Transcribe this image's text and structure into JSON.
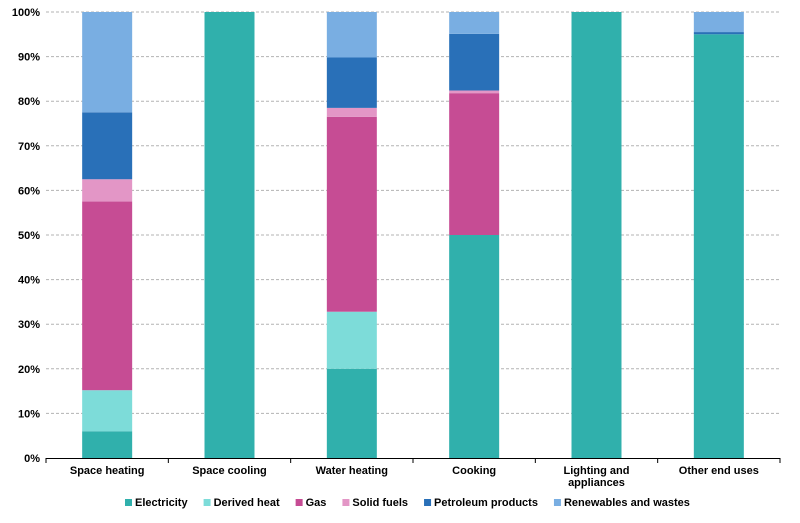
{
  "chart_data": {
    "type": "bar",
    "stacked": true,
    "title": "",
    "xlabel": "",
    "ylabel": "",
    "ylim": [
      0,
      100
    ],
    "y_ticks": [
      "0%",
      "10%",
      "20%",
      "30%",
      "40%",
      "50%",
      "60%",
      "70%",
      "80%",
      "90%",
      "100%"
    ],
    "categories": [
      [
        "Space heating"
      ],
      [
        "Space cooling"
      ],
      [
        "Water heating"
      ],
      [
        "Cooking"
      ],
      [
        "Lighting and",
        "appliances"
      ],
      [
        "Other end uses"
      ]
    ],
    "series": [
      {
        "name": "Electricity",
        "color": "#30B0AC",
        "values": [
          6,
          100,
          20,
          50,
          100,
          95
        ]
      },
      {
        "name": "Derived heat",
        "color": "#7DDCD9",
        "values": [
          9.2,
          0,
          12.8,
          0,
          0,
          0
        ]
      },
      {
        "name": "Gas",
        "color": "#C64C94",
        "values": [
          42.3,
          0,
          43.7,
          31.8,
          0,
          0
        ]
      },
      {
        "name": "Solid fuels",
        "color": "#E396C6",
        "values": [
          5,
          0,
          2,
          0.6,
          0,
          0
        ]
      },
      {
        "name": "Petroleum products",
        "color": "#2970B8",
        "values": [
          15,
          0,
          11.3,
          12.7,
          0,
          0.5
        ]
      },
      {
        "name": "Renewables and wastes",
        "color": "#79AEE2",
        "values": [
          22.5,
          0,
          10.2,
          4.9,
          0,
          4.5
        ]
      }
    ],
    "grid": true,
    "legend_position": "bottom"
  }
}
